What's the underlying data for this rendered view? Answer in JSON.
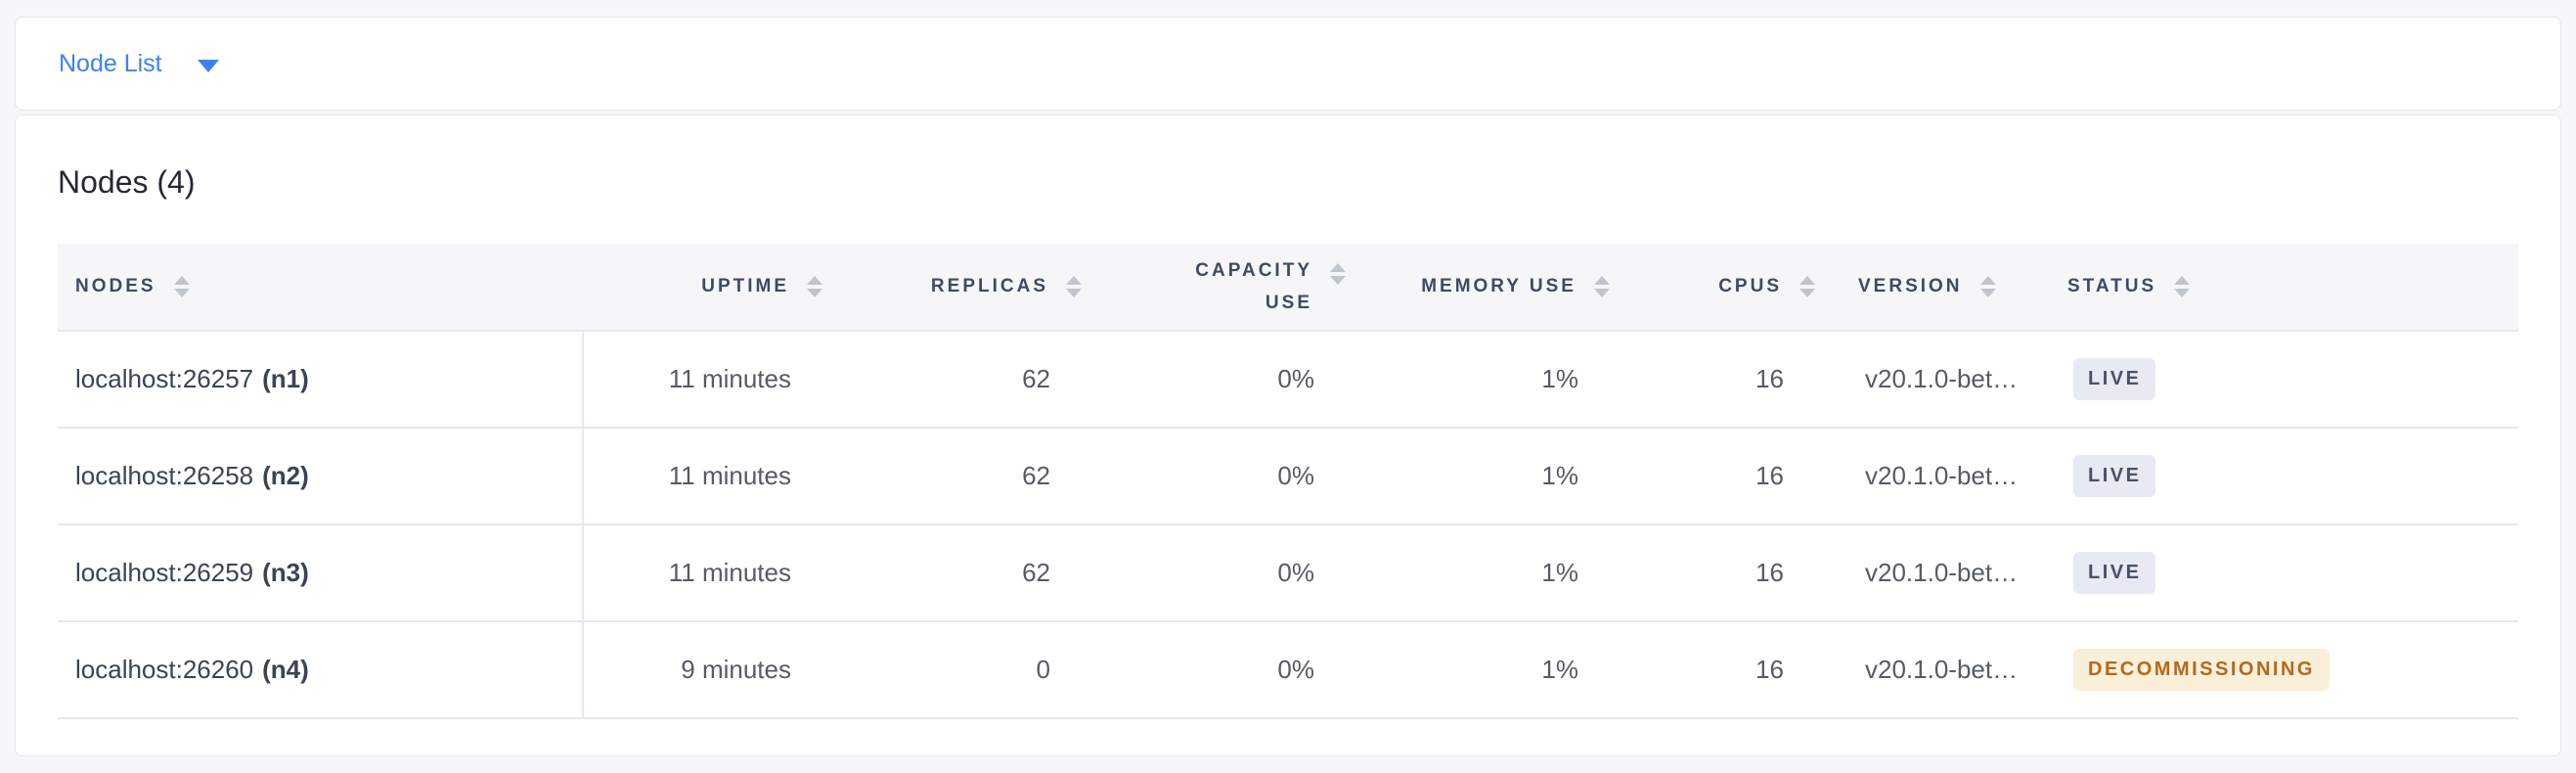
{
  "colors": {
    "page_bg": "#f5f7fa",
    "accent_blue": "#3b82f6",
    "header_bg": "#f6f6f8",
    "header_text": "#3e4a61",
    "cell_text": "#565b64",
    "node_text": "#394455",
    "sort_icon": "#c0c4cc",
    "row_border": "#e4e8ee",
    "heading_text": "#242a33",
    "badge_live_bg": "#e7eaf2",
    "badge_live_text": "#475169",
    "badge_decommissioning_bg": "#faefd9",
    "badge_decommissioning_text": "#b16a1f"
  },
  "view_selector": {
    "label": "Node List"
  },
  "heading": "Nodes (4)",
  "table": {
    "columns": [
      {
        "label": "NODES"
      },
      {
        "label": "UPTIME"
      },
      {
        "label": "REPLICAS"
      },
      {
        "label": "CAPACITY USE"
      },
      {
        "label": "MEMORY USE"
      },
      {
        "label": "CPUS"
      },
      {
        "label": "VERSION"
      },
      {
        "label": "STATUS"
      }
    ],
    "rows": [
      {
        "node": "localhost:26257",
        "node_id": "(n1)",
        "uptime": "11 minutes",
        "replicas": "62",
        "capacity_use": "0%",
        "memory_use": "1%",
        "cpus": "16",
        "version": "v20.1.0-bet…",
        "status": "LIVE",
        "status_kind": "live"
      },
      {
        "node": "localhost:26258",
        "node_id": "(n2)",
        "uptime": "11 minutes",
        "replicas": "62",
        "capacity_use": "0%",
        "memory_use": "1%",
        "cpus": "16",
        "version": "v20.1.0-bet…",
        "status": "LIVE",
        "status_kind": "live"
      },
      {
        "node": "localhost:26259",
        "node_id": "(n3)",
        "uptime": "11 minutes",
        "replicas": "62",
        "capacity_use": "0%",
        "memory_use": "1%",
        "cpus": "16",
        "version": "v20.1.0-bet…",
        "status": "LIVE",
        "status_kind": "live"
      },
      {
        "node": "localhost:26260",
        "node_id": "(n4)",
        "uptime": "9 minutes",
        "replicas": "0",
        "capacity_use": "0%",
        "memory_use": "1%",
        "cpus": "16",
        "version": "v20.1.0-bet…",
        "status": "DECOMMISSIONING",
        "status_kind": "decommissioning"
      }
    ]
  }
}
